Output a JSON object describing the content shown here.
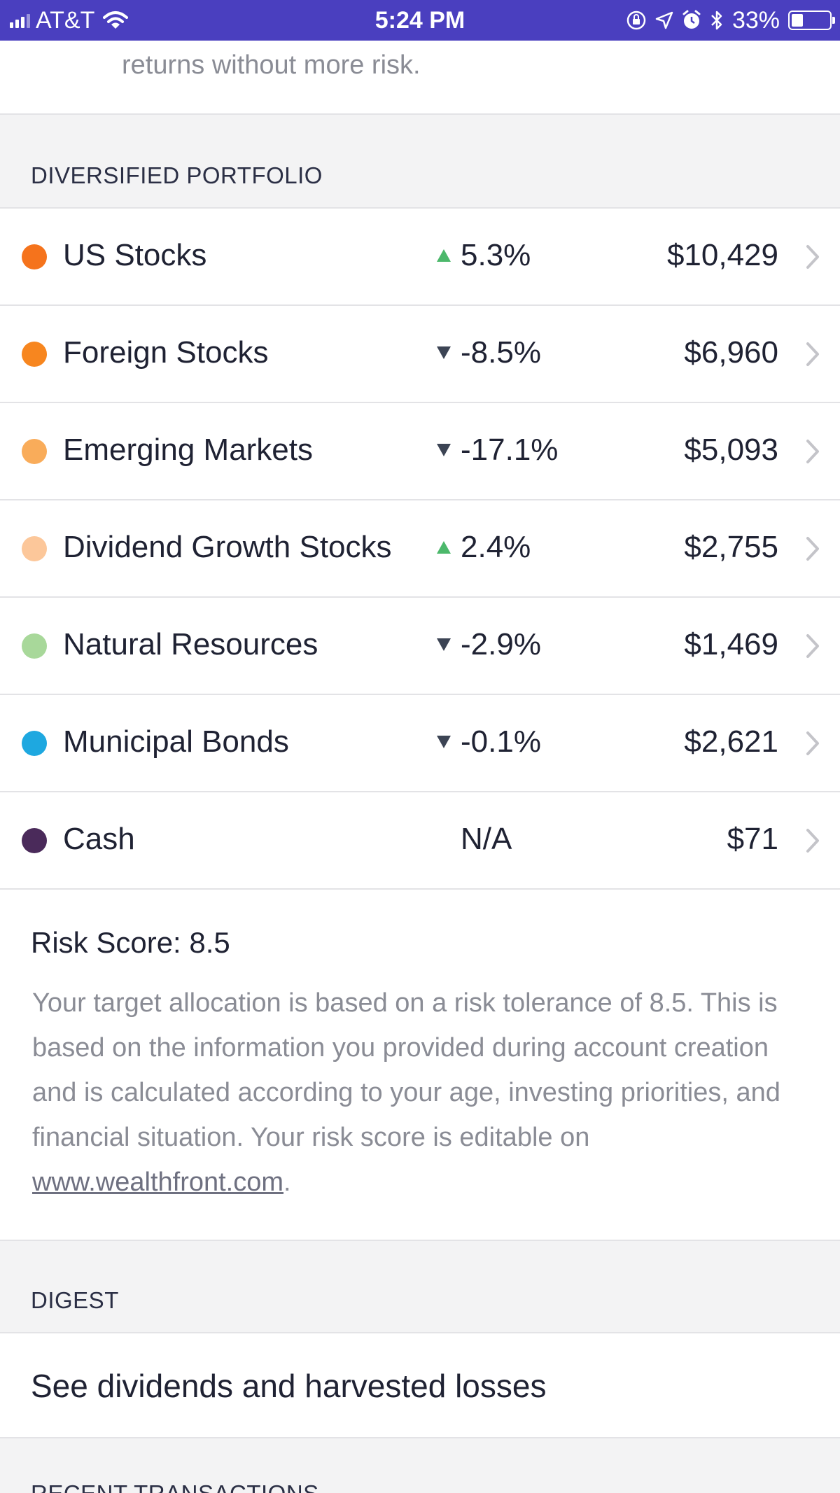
{
  "status_bar": {
    "carrier": "AT&T",
    "time": "5:24 PM",
    "battery_percent": "33%",
    "battery_level": 0.33,
    "icons": [
      "signal-icon",
      "wifi-icon",
      "orientation-lock-icon",
      "location-icon",
      "alarm-icon",
      "bluetooth-icon",
      "battery-icon"
    ]
  },
  "intro": {
    "text": "returns without more risk."
  },
  "portfolio": {
    "section_title": "DIVERSIFIED PORTFOLIO",
    "rows": [
      {
        "name": "US Stocks",
        "change": "5.3%",
        "direction": "up",
        "value": "$10,429",
        "color": "#f5731c"
      },
      {
        "name": "Foreign Stocks",
        "change": "-8.5%",
        "direction": "down",
        "value": "$6,960",
        "color": "#f7861f"
      },
      {
        "name": "Emerging Markets",
        "change": "-17.1%",
        "direction": "down",
        "value": "$5,093",
        "color": "#f9ac5a"
      },
      {
        "name": "Dividend Growth Stocks",
        "change": "2.4%",
        "direction": "up",
        "value": "$2,755",
        "color": "#fcc79a"
      },
      {
        "name": "Natural Resources",
        "change": "-2.9%",
        "direction": "down",
        "value": "$1,469",
        "color": "#a8d89a"
      },
      {
        "name": "Municipal Bonds",
        "change": "-0.1%",
        "direction": "down",
        "value": "$2,621",
        "color": "#1ea8e0"
      },
      {
        "name": "Cash",
        "change": "N/A",
        "direction": "none",
        "value": "$71",
        "color": "#4a2a5a"
      }
    ],
    "up_color": "#4cb86b",
    "down_color": "#3c4454"
  },
  "risk": {
    "title": "Risk Score: 8.5",
    "text_before_link": "Your target allocation is based on a risk tolerance of 8.5. This is based on the information you provided during account creation and is calculated according to your age, investing priorities, and financial situation. Your risk score is editable on ",
    "link_text": "www.wealthfront.com",
    "text_after_link": "."
  },
  "digest": {
    "section_title": "DIGEST",
    "item_label": "See dividends and harvested losses"
  },
  "recent_transactions": {
    "section_title": "RECENT TRANSACTIONS"
  }
}
